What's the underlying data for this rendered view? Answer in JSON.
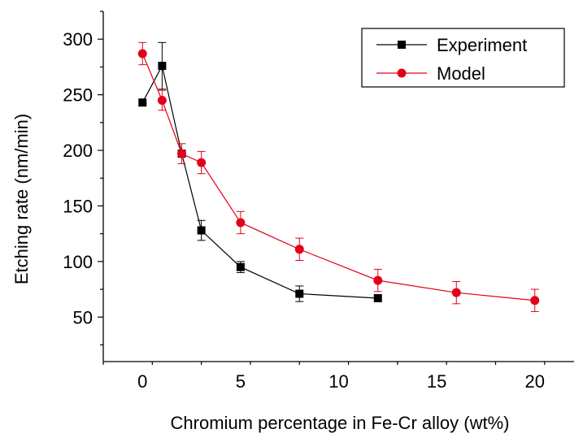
{
  "chart_data": {
    "type": "line",
    "xlabel": "Chromium percentage in Fe-Cr alloy (wt%)",
    "ylabel": "Etching rate (nm/min)",
    "xlim": [
      -2,
      22
    ],
    "ylim": [
      10,
      325
    ],
    "xticks": [
      0,
      5,
      10,
      15,
      20
    ],
    "yticks": [
      50,
      100,
      150,
      200,
      250,
      300
    ],
    "grid": false,
    "legend_position": "top-right",
    "series": [
      {
        "name": "Experiment",
        "color": "#000000",
        "marker": "square",
        "x": [
          0,
          1,
          2,
          3,
          5,
          8,
          12
        ],
        "y": [
          243,
          276,
          197,
          128,
          95,
          71,
          67
        ],
        "err": [
          0,
          21,
          0,
          9,
          5,
          7,
          0
        ]
      },
      {
        "name": "Model",
        "color": "#e3001b",
        "marker": "circle",
        "x": [
          0,
          1,
          2,
          3,
          5,
          8,
          12,
          16,
          20
        ],
        "y": [
          287,
          245,
          197,
          189,
          135,
          111,
          83,
          72,
          65
        ],
        "err": [
          10,
          9,
          9,
          10,
          10,
          10,
          10,
          10,
          10
        ]
      }
    ]
  }
}
